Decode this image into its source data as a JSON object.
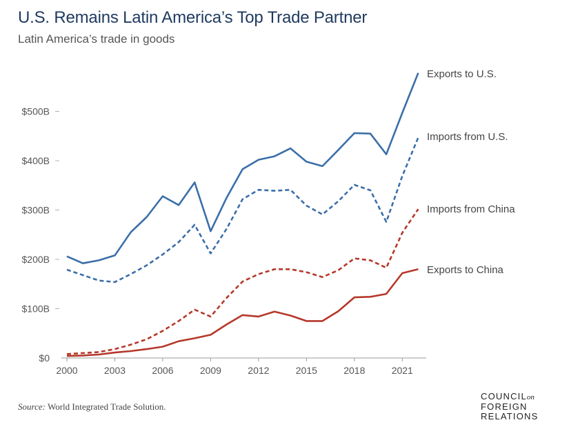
{
  "header": {
    "title": "U.S. Remains Latin America’s Top Trade Partner",
    "subtitle": "Latin America’s trade in goods"
  },
  "footer": {
    "source_label": "Source:",
    "source_text": "World Integrated Trade Solution.",
    "logo": [
      "COUNCIL",
      "on",
      "FOREIGN",
      "RELATIONS"
    ]
  },
  "chart_data": {
    "type": "line",
    "title": "U.S. Remains Latin America’s Top Trade Partner",
    "subtitle": "Latin America’s trade in goods",
    "xlabel": "",
    "ylabel": "",
    "x": [
      2000,
      2001,
      2002,
      2003,
      2004,
      2005,
      2006,
      2007,
      2008,
      2009,
      2010,
      2011,
      2012,
      2013,
      2014,
      2015,
      2016,
      2017,
      2018,
      2019,
      2020,
      2021,
      2022
    ],
    "xticks": [
      2000,
      2003,
      2006,
      2009,
      2012,
      2015,
      2018,
      2021
    ],
    "xtick_labels": [
      "2000",
      "2003",
      "2006",
      "2009",
      "2012",
      "2015",
      "2018",
      "2021"
    ],
    "xlim": [
      2000,
      2022.5
    ],
    "yticks": [
      0,
      100,
      200,
      300,
      400,
      500
    ],
    "ytick_labels": [
      "$0",
      "$100B",
      "$200B",
      "$300B",
      "$400B",
      "$500B"
    ],
    "ylim": [
      0,
      600
    ],
    "units": "billions of U.S. dollars",
    "grid": false,
    "legend": "direct labels at line ends, right side",
    "colors": {
      "us": "#3a6ea8",
      "china": "#b5382a"
    },
    "series": [
      {
        "name": "Exports to U.S.",
        "color": "#3a6ea8",
        "style": "solid",
        "values": [
          206,
          192,
          198,
          208,
          255,
          286,
          328,
          310,
          356,
          257,
          325,
          383,
          402,
          409,
          425,
          398,
          389,
          422,
          456,
          455,
          413,
          497,
          578
        ]
      },
      {
        "name": "Imports from U.S.",
        "color": "#3a6ea8",
        "style": "dashed",
        "values": [
          179,
          168,
          157,
          154,
          170,
          188,
          210,
          235,
          270,
          212,
          262,
          322,
          341,
          339,
          341,
          309,
          291,
          318,
          351,
          340,
          276,
          369,
          447
        ]
      },
      {
        "name": "Imports from China",
        "color": "#b5382a",
        "style": "dashed",
        "values": [
          8,
          10,
          12,
          18,
          27,
          38,
          55,
          75,
          98,
          84,
          122,
          155,
          170,
          180,
          180,
          174,
          164,
          178,
          202,
          198,
          183,
          254,
          302
        ]
      },
      {
        "name": "Exports to China",
        "color": "#b5382a",
        "style": "solid",
        "values": [
          4,
          5,
          7,
          11,
          14,
          18,
          23,
          34,
          40,
          47,
          68,
          87,
          84,
          94,
          86,
          75,
          75,
          95,
          123,
          124,
          130,
          172,
          180
        ]
      }
    ]
  }
}
